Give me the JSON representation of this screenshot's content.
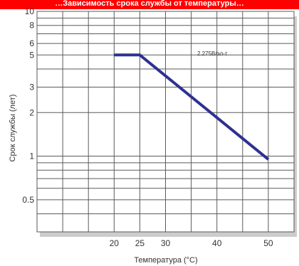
{
  "banner": {
    "text": "…Зависимость срока службы от температуры…"
  },
  "chart_data": {
    "type": "line",
    "title": "",
    "xlabel": "Температура (°C)",
    "ylabel": "Срок службы  (лет)",
    "x_scale": "linear",
    "y_scale": "log",
    "xlim": [
      5,
      55
    ],
    "ylim": [
      0.3,
      10
    ],
    "grid": true,
    "x_ticks": [
      20,
      25,
      30,
      40,
      50
    ],
    "y_ticks": [
      0.5,
      1,
      2,
      3,
      5,
      6,
      8,
      10
    ],
    "series": [
      {
        "name": "2.275В/эл-т",
        "color": "#2e3192",
        "x": [
          20,
          25,
          50
        ],
        "y": [
          5,
          5,
          0.95
        ]
      }
    ],
    "annotations": [
      {
        "text": "2.275В/эл-т"
      }
    ],
    "colors": {
      "plot_bg": "#ffffff",
      "grid": "#5a5a5a",
      "shadow": "#cccccc",
      "line": "#2e3192"
    }
  }
}
